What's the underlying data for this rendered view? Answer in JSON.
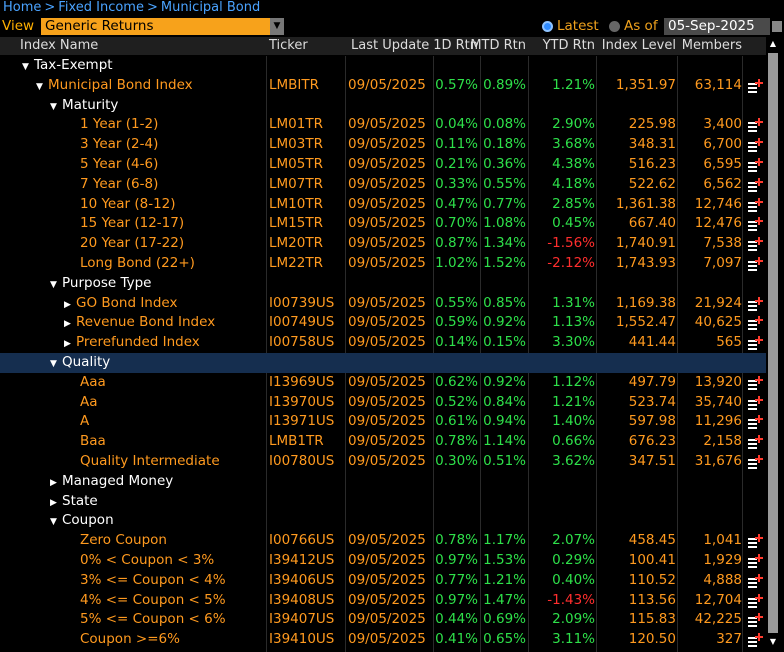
{
  "breadcrumb": [
    "Home",
    "Fixed Income",
    "Municipal Bond"
  ],
  "view": {
    "label": "View",
    "selected": "Generic Returns"
  },
  "latest_label": "Latest",
  "as_of_label": "As of",
  "as_of_date": "05-Sep-2025",
  "columns": {
    "name": "Index Name",
    "ticker": "Ticker",
    "last_update": "Last Update",
    "d1": "1D Rtn",
    "mtd": "MTD Rtn",
    "ytd": "YTD Rtn",
    "level": "Index Level",
    "members": "Members"
  },
  "rows": [
    {
      "indent": 1,
      "arrow": "▼",
      "name": "Tax-Exempt",
      "type": "grp"
    },
    {
      "indent": 2,
      "arrow": "▼",
      "name": "Municipal Bond Index",
      "type": "leaf",
      "ticker": "LMBITR",
      "date": "09/05/2025",
      "d1": "0.57%",
      "mtd": "0.89%",
      "ytd": "1.21%",
      "level": "1,351.97",
      "members": "63,114"
    },
    {
      "indent": 3,
      "arrow": "▼",
      "name": "Maturity",
      "type": "grp"
    },
    {
      "indent": 4,
      "name": "1 Year (1-2)",
      "type": "leaf",
      "ticker": "LM01TR",
      "date": "09/05/2025",
      "d1": "0.04%",
      "mtd": "0.08%",
      "ytd": "2.90%",
      "level": "225.98",
      "members": "3,400"
    },
    {
      "indent": 4,
      "name": "3 Year (2-4)",
      "type": "leaf",
      "ticker": "LM03TR",
      "date": "09/05/2025",
      "d1": "0.11%",
      "mtd": "0.18%",
      "ytd": "3.68%",
      "level": "348.31",
      "members": "6,700"
    },
    {
      "indent": 4,
      "name": "5 Year (4-6)",
      "type": "leaf",
      "ticker": "LM05TR",
      "date": "09/05/2025",
      "d1": "0.21%",
      "mtd": "0.36%",
      "ytd": "4.38%",
      "level": "516.23",
      "members": "6,595"
    },
    {
      "indent": 4,
      "name": "7 Year (6-8)",
      "type": "leaf",
      "ticker": "LM07TR",
      "date": "09/05/2025",
      "d1": "0.33%",
      "mtd": "0.55%",
      "ytd": "4.18%",
      "level": "522.62",
      "members": "6,562"
    },
    {
      "indent": 4,
      "name": "10 Year (8-12)",
      "type": "leaf",
      "ticker": "LM10TR",
      "date": "09/05/2025",
      "d1": "0.47%",
      "mtd": "0.77%",
      "ytd": "2.85%",
      "level": "1,361.38",
      "members": "12,746"
    },
    {
      "indent": 4,
      "name": "15 Year (12-17)",
      "type": "leaf",
      "ticker": "LM15TR",
      "date": "09/05/2025",
      "d1": "0.70%",
      "mtd": "1.08%",
      "ytd": "0.45%",
      "level": "667.40",
      "members": "12,476"
    },
    {
      "indent": 4,
      "name": "20 Year (17-22)",
      "type": "leaf",
      "ticker": "LM20TR",
      "date": "09/05/2025",
      "d1": "0.87%",
      "mtd": "1.34%",
      "ytd": "-1.56%",
      "level": "1,740.91",
      "members": "7,538"
    },
    {
      "indent": 4,
      "name": "Long Bond (22+)",
      "type": "leaf",
      "ticker": "LM22TR",
      "date": "09/05/2025",
      "d1": "1.02%",
      "mtd": "1.52%",
      "ytd": "-2.12%",
      "level": "1,743.93",
      "members": "7,097"
    },
    {
      "indent": 3,
      "arrow": "▼",
      "name": "Purpose Type",
      "type": "grp"
    },
    {
      "indent": 4,
      "arrow": "▶",
      "name": "GO Bond Index",
      "type": "leaf",
      "ticker": "I00739US",
      "date": "09/05/2025",
      "d1": "0.55%",
      "mtd": "0.85%",
      "ytd": "1.31%",
      "level": "1,169.38",
      "members": "21,924"
    },
    {
      "indent": 4,
      "arrow": "▶",
      "name": "Revenue Bond Index",
      "type": "leaf",
      "ticker": "I00749US",
      "date": "09/05/2025",
      "d1": "0.59%",
      "mtd": "0.92%",
      "ytd": "1.13%",
      "level": "1,552.47",
      "members": "40,625"
    },
    {
      "indent": 4,
      "arrow": "▶",
      "name": "Prerefunded Index",
      "type": "leaf",
      "ticker": "I00758US",
      "date": "09/05/2025",
      "d1": "0.14%",
      "mtd": "0.15%",
      "ytd": "3.30%",
      "level": "441.44",
      "members": "565"
    },
    {
      "indent": 3,
      "arrow": "▼",
      "name": "Quality",
      "type": "grp",
      "selected": true
    },
    {
      "indent": 4,
      "name": "Aaa",
      "type": "leaf",
      "ticker": "I13969US",
      "date": "09/05/2025",
      "d1": "0.62%",
      "mtd": "0.92%",
      "ytd": "1.12%",
      "level": "497.79",
      "members": "13,920"
    },
    {
      "indent": 4,
      "name": "Aa",
      "type": "leaf",
      "ticker": "I13970US",
      "date": "09/05/2025",
      "d1": "0.52%",
      "mtd": "0.84%",
      "ytd": "1.21%",
      "level": "523.74",
      "members": "35,740"
    },
    {
      "indent": 4,
      "name": "A",
      "type": "leaf",
      "ticker": "I13971US",
      "date": "09/05/2025",
      "d1": "0.61%",
      "mtd": "0.94%",
      "ytd": "1.40%",
      "level": "597.98",
      "members": "11,296"
    },
    {
      "indent": 4,
      "name": "Baa",
      "type": "leaf",
      "ticker": "LMB1TR",
      "date": "09/05/2025",
      "d1": "0.78%",
      "mtd": "1.14%",
      "ytd": "0.66%",
      "level": "676.23",
      "members": "2,158"
    },
    {
      "indent": 4,
      "name": "Quality Intermediate",
      "type": "leaf",
      "ticker": "I00780US",
      "date": "09/05/2025",
      "d1": "0.30%",
      "mtd": "0.51%",
      "ytd": "3.62%",
      "level": "347.51",
      "members": "31,676"
    },
    {
      "indent": 3,
      "arrow": "▶",
      "name": "Managed Money",
      "type": "grp"
    },
    {
      "indent": 3,
      "arrow": "▶",
      "name": "State",
      "type": "grp"
    },
    {
      "indent": 3,
      "arrow": "▼",
      "name": "Coupon",
      "type": "grp"
    },
    {
      "indent": 4,
      "name": "Zero Coupon",
      "type": "leaf",
      "ticker": "I00766US",
      "date": "09/05/2025",
      "d1": "0.78%",
      "mtd": "1.17%",
      "ytd": "2.07%",
      "level": "458.45",
      "members": "1,041"
    },
    {
      "indent": 4,
      "name": "0% < Coupon < 3%",
      "type": "leaf",
      "ticker": "I39412US",
      "date": "09/05/2025",
      "d1": "0.97%",
      "mtd": "1.53%",
      "ytd": "0.29%",
      "level": "100.41",
      "members": "1,929"
    },
    {
      "indent": 4,
      "name": "3% <= Coupon < 4%",
      "type": "leaf",
      "ticker": "I39406US",
      "date": "09/05/2025",
      "d1": "0.77%",
      "mtd": "1.21%",
      "ytd": "0.40%",
      "level": "110.52",
      "members": "4,888"
    },
    {
      "indent": 4,
      "name": "4% <= Coupon < 5%",
      "type": "leaf",
      "ticker": "I39408US",
      "date": "09/05/2025",
      "d1": "0.97%",
      "mtd": "1.47%",
      "ytd": "-1.43%",
      "level": "113.56",
      "members": "12,704"
    },
    {
      "indent": 4,
      "name": "5% <= Coupon < 6%",
      "type": "leaf",
      "ticker": "I39407US",
      "date": "09/05/2025",
      "d1": "0.44%",
      "mtd": "0.69%",
      "ytd": "2.09%",
      "level": "115.83",
      "members": "42,225"
    },
    {
      "indent": 4,
      "name": "Coupon >=6%",
      "type": "leaf",
      "ticker": "I39410US",
      "date": "09/05/2025",
      "d1": "0.41%",
      "mtd": "0.65%",
      "ytd": "3.11%",
      "level": "120.50",
      "members": "327"
    }
  ]
}
